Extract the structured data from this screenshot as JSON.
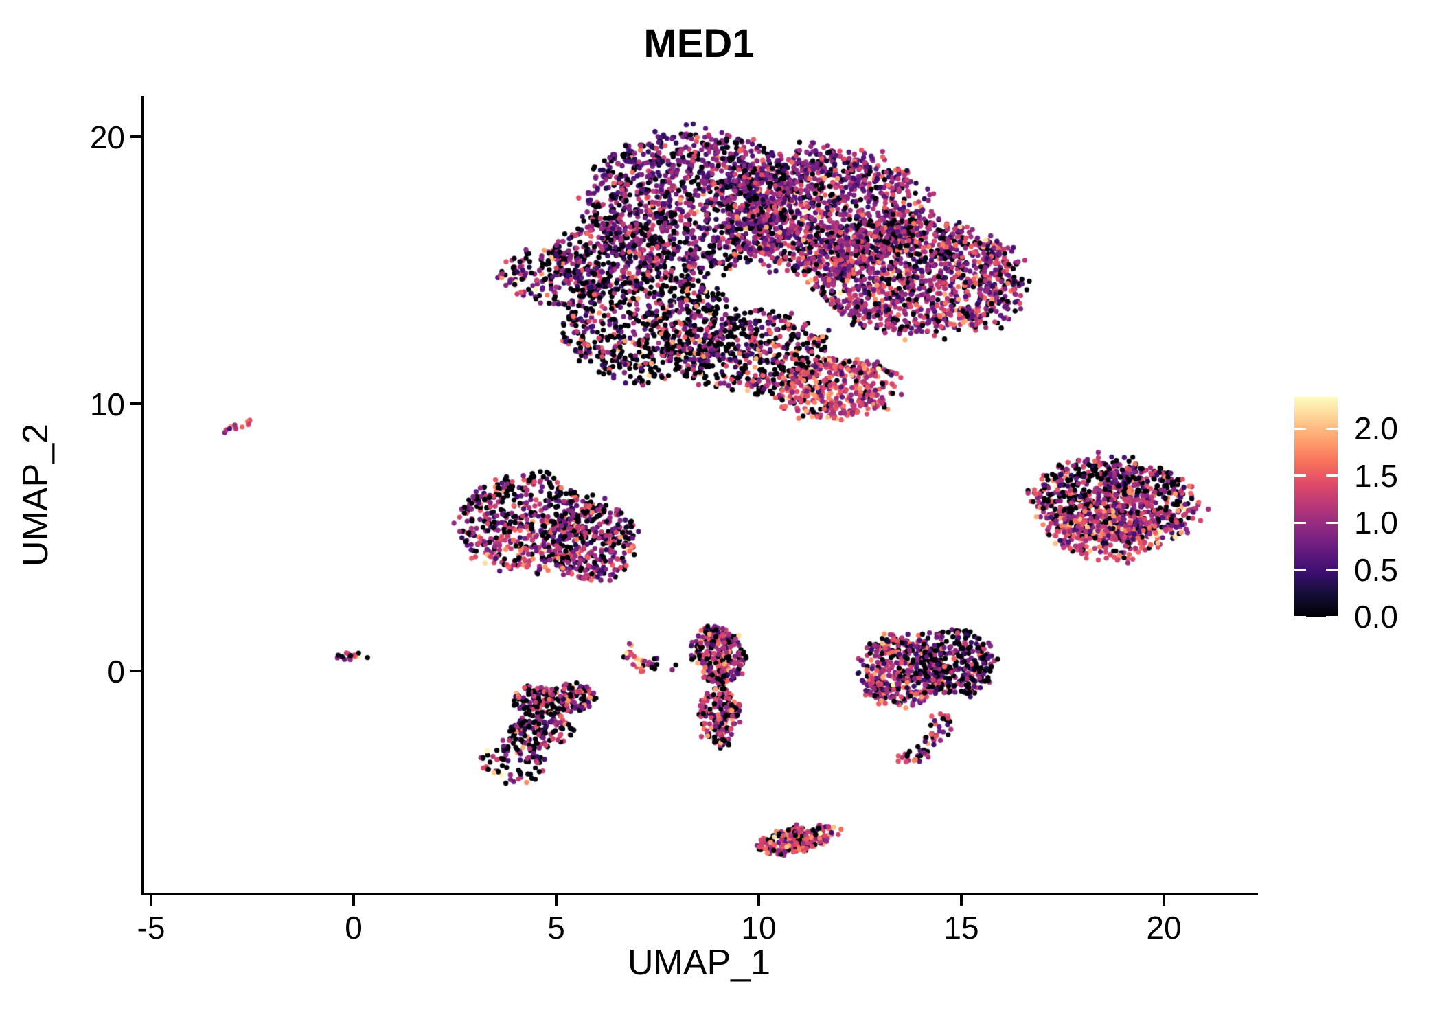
{
  "title": "MED1",
  "axes": {
    "x": {
      "label": "UMAP_1",
      "tick_labels": [
        "-5",
        "0",
        "5",
        "10",
        "15",
        "20"
      ],
      "tick_values": [
        -5,
        0,
        5,
        10,
        15,
        20
      ]
    },
    "y": {
      "label": "UMAP_2",
      "tick_labels": [
        "0",
        "10",
        "20"
      ],
      "tick_values": [
        0,
        10,
        20
      ]
    }
  },
  "colorbar": {
    "tick_labels": [
      "0.0",
      "0.5",
      "1.0",
      "1.5",
      "2.0"
    ],
    "tick_values": [
      0.0,
      0.5,
      1.0,
      1.5,
      2.0
    ],
    "domain": [
      0,
      2.34
    ],
    "colormap_name": "magma",
    "stops": [
      [
        0.0,
        "#000004"
      ],
      [
        0.1,
        "#140e36"
      ],
      [
        0.2,
        "#3b0f70"
      ],
      [
        0.3,
        "#641a80"
      ],
      [
        0.4,
        "#8c2981"
      ],
      [
        0.5,
        "#b73779"
      ],
      [
        0.6,
        "#de4968"
      ],
      [
        0.7,
        "#f7705c"
      ],
      [
        0.8,
        "#fe9f6d"
      ],
      [
        0.9,
        "#fecf92"
      ],
      [
        1.0,
        "#fcfdbf"
      ]
    ]
  },
  "chart_data": {
    "type": "scatter",
    "title": "MED1",
    "xlabel": "UMAP_1",
    "ylabel": "UMAP_2",
    "xlim": [
      -5.2,
      22.3
    ],
    "ylim": [
      -8.4,
      21.5
    ],
    "grid": false,
    "legend_position": "right-colorbar",
    "color_variable": "MED1 expression",
    "color_domain": [
      0,
      2.34
    ],
    "approx_total_points": 9700,
    "point_radius_px": 3.7,
    "seed": 7,
    "clusters": [
      {
        "name": "main-upper-blob",
        "extent_x": [
          3.8,
          16.6
        ],
        "extent_y": [
          8.8,
          20.2
        ],
        "zero_fraction": 0.25,
        "mean_nonzero": 0.95,
        "shapes": [
          {
            "cx": 8.3,
            "cy": 17.5,
            "rx": 2.6,
            "ry": 2.7,
            "rot": 0,
            "n": 1250,
            "p0": [
              0.18,
              0.28
            ],
            "mu": [
              0.85,
              0.85
            ],
            "sd": 0.4
          },
          {
            "cx": 11.6,
            "cy": 17.2,
            "rx": 2.5,
            "ry": 2.4,
            "rot": 0,
            "n": 1250,
            "p0": [
              0.15,
              0.2
            ],
            "mu": [
              0.9,
              0.95
            ],
            "sd": 0.42
          },
          {
            "cx": 13.9,
            "cy": 14.8,
            "rx": 2.7,
            "ry": 2.2,
            "rot": -15,
            "n": 1300,
            "p0": [
              0.2,
              0.18
            ],
            "mu": [
              1.0,
              1.05
            ],
            "sd": 0.42
          },
          {
            "cx": 7.3,
            "cy": 12.9,
            "rx": 2.1,
            "ry": 2.1,
            "rot": 0,
            "n": 700,
            "p0": [
              0.42,
              0.5
            ],
            "mu": [
              0.95,
              1.0
            ],
            "sd": 0.5
          },
          {
            "cx": 9.9,
            "cy": 11.9,
            "rx": 1.9,
            "ry": 1.5,
            "rot": 0,
            "n": 430,
            "p0": [
              0.4,
              0.45
            ],
            "mu": [
              0.9,
              1.0
            ],
            "sd": 0.5
          },
          {
            "cx": 11.9,
            "cy": 10.6,
            "rx": 1.55,
            "ry": 1.15,
            "rot": 10,
            "n": 420,
            "p0": [
              0.15,
              0.12
            ],
            "mu": [
              1.3,
              1.35
            ],
            "sd": 0.35
          },
          {
            "cx": 4.9,
            "cy": 14.7,
            "rx": 1.3,
            "ry": 1.0,
            "rot": -20,
            "n": 200,
            "p0": [
              0.4,
              0.45
            ],
            "mu": [
              1.0,
              1.0
            ],
            "sd": 0.5
          },
          {
            "cx": 6.3,
            "cy": 15.6,
            "rx": 1.4,
            "ry": 1.3,
            "rot": 0,
            "n": 280,
            "p0": [
              0.3,
              0.38
            ],
            "mu": [
              0.9,
              0.9
            ],
            "sd": 0.45
          }
        ]
      },
      {
        "name": "tiny-streak-upper-left",
        "extent_x": [
          -3.2,
          -2.5
        ],
        "extent_y": [
          8.8,
          9.5
        ],
        "zero_fraction": 0.08,
        "mean_nonzero": 1.55,
        "shapes": [
          {
            "cx": -2.85,
            "cy": 9.15,
            "rx": 0.42,
            "ry": 0.13,
            "rot": 35,
            "n": 11,
            "p0": [
              0.08,
              0.08
            ],
            "mu": [
              1.55,
              1.55
            ],
            "sd": 0.38
          }
        ]
      },
      {
        "name": "mid-left-blob",
        "extent_x": [
          2.6,
          7.0
        ],
        "extent_y": [
          3.3,
          7.4
        ],
        "zero_fraction": 0.3,
        "mean_nonzero": 1.1,
        "shapes": [
          {
            "cx": 4.3,
            "cy": 5.55,
            "rx": 1.7,
            "ry": 1.8,
            "rot": 0,
            "n": 530,
            "p0": [
              0.5,
              0.12
            ],
            "mu": [
              0.85,
              1.25
            ],
            "sd": 0.42
          },
          {
            "cx": 5.85,
            "cy": 4.85,
            "rx": 1.15,
            "ry": 1.5,
            "rot": 0,
            "n": 330,
            "p0": [
              0.42,
              0.18
            ],
            "mu": [
              0.9,
              1.15
            ],
            "sd": 0.42
          }
        ]
      },
      {
        "name": "tiny-streak-origin",
        "extent_x": [
          -0.4,
          0.55
        ],
        "extent_y": [
          0.3,
          0.75
        ],
        "zero_fraction": 0.3,
        "mean_nonzero": 1.1,
        "shapes": [
          {
            "cx": 0.05,
            "cy": 0.5,
            "rx": 0.5,
            "ry": 0.17,
            "rot": -14,
            "n": 16,
            "p0": [
              0.3,
              0.3
            ],
            "mu": [
              1.1,
              1.1
            ],
            "sd": 0.55
          }
        ]
      },
      {
        "name": "right-blob",
        "extent_x": [
          16.9,
          20.8
        ],
        "extent_y": [
          4.0,
          8.5
        ],
        "zero_fraction": 0.3,
        "mean_nonzero": 1.1,
        "shapes": [
          {
            "cx": 18.8,
            "cy": 6.35,
            "rx": 2.05,
            "ry": 1.55,
            "rot": -14,
            "n": 860,
            "p0": [
              0.45,
              0.15
            ],
            "mu": [
              0.9,
              1.2
            ],
            "sd": 0.45
          },
          {
            "cx": 18.5,
            "cy": 5.1,
            "rx": 1.5,
            "ry": 0.95,
            "rot": -10,
            "n": 230,
            "p0": [
              0.15,
              0.12
            ],
            "mu": [
              1.2,
              1.25
            ],
            "sd": 0.42
          }
        ]
      },
      {
        "name": "tiny-arc",
        "extent_x": [
          6.6,
          8.0
        ],
        "extent_y": [
          -0.2,
          1.2
        ],
        "zero_fraction": 0.28,
        "mean_nonzero": 1.25,
        "shapes": [
          {
            "cx": 7.0,
            "cy": 0.5,
            "rx": 0.3,
            "ry": 0.6,
            "rot": 25,
            "n": 26,
            "p0": [
              0.2,
              0.2
            ],
            "mu": [
              1.35,
              1.35
            ],
            "sd": 0.45
          },
          {
            "cx": 7.6,
            "cy": 0.25,
            "rx": 0.4,
            "ry": 0.3,
            "rot": 0,
            "n": 9,
            "p0": [
              0.55,
              0.55
            ],
            "mu": [
              0.9,
              0.9
            ],
            "sd": 0.4
          }
        ]
      },
      {
        "name": "vertical-column",
        "extent_x": [
          8.3,
          9.7
        ],
        "extent_y": [
          -2.9,
          1.7
        ],
        "zero_fraction": 0.3,
        "mean_nonzero": 1.1,
        "shapes": [
          {
            "cx": 9.0,
            "cy": 0.55,
            "rx": 0.62,
            "ry": 1.1,
            "rot": 5,
            "n": 270,
            "p0": [
              0.3,
              0.28
            ],
            "mu": [
              1.1,
              1.15
            ],
            "sd": 0.45
          },
          {
            "cx": 9.05,
            "cy": -1.75,
            "rx": 0.5,
            "ry": 1.2,
            "rot": 0,
            "n": 175,
            "p0": [
              0.3,
              0.3
            ],
            "mu": [
              1.1,
              1.1
            ],
            "sd": 0.45
          }
        ]
      },
      {
        "name": "lower-left-s-blob",
        "extent_x": [
          3.2,
          6.0
        ],
        "extent_y": [
          -4.3,
          -0.4
        ],
        "zero_fraction": 0.48,
        "mean_nonzero": 1.0,
        "shapes": [
          {
            "cx": 4.95,
            "cy": -1.05,
            "rx": 1.05,
            "ry": 0.6,
            "rot": 5,
            "n": 200,
            "p0": [
              0.42,
              0.42
            ],
            "mu": [
              1.05,
              1.05
            ],
            "sd": 0.5
          },
          {
            "cx": 4.6,
            "cy": -2.2,
            "rx": 0.8,
            "ry": 0.7,
            "rot": 0,
            "n": 120,
            "p0": [
              0.55,
              0.5
            ],
            "mu": [
              0.95,
              0.95
            ],
            "sd": 0.5
          },
          {
            "cx": 3.95,
            "cy": -3.4,
            "rx": 0.8,
            "ry": 0.85,
            "rot": 0,
            "n": 85,
            "p0": [
              0.5,
              0.5
            ],
            "mu": [
              1.0,
              1.0
            ],
            "sd": 0.5
          }
        ]
      },
      {
        "name": "right-center-blob",
        "extent_x": [
          12.6,
          15.8
        ],
        "extent_y": [
          -1.6,
          1.7
        ],
        "zero_fraction": 0.3,
        "mean_nonzero": 1.0,
        "shapes": [
          {
            "cx": 13.5,
            "cy": 0.0,
            "rx": 1.05,
            "ry": 1.35,
            "rot": 0,
            "n": 390,
            "p0": [
              0.2,
              0.18
            ],
            "mu": [
              1.1,
              1.15
            ],
            "sd": 0.45
          },
          {
            "cx": 14.8,
            "cy": 0.3,
            "rx": 1.0,
            "ry": 1.3,
            "rot": 0,
            "n": 310,
            "p0": [
              0.45,
              0.4
            ],
            "mu": [
              0.85,
              0.9
            ],
            "sd": 0.45
          }
        ]
      },
      {
        "name": "comma-tail",
        "extent_x": [
          13.3,
          14.9
        ],
        "extent_y": [
          -3.5,
          -1.6
        ],
        "zero_fraction": 0.3,
        "mean_nonzero": 1.15,
        "shapes": [
          {
            "cx": 14.55,
            "cy": -2.0,
            "rx": 0.28,
            "ry": 0.4,
            "rot": 15,
            "n": 18,
            "p0": [
              0.3,
              0.3
            ],
            "mu": [
              1.15,
              1.15
            ],
            "sd": 0.45
          },
          {
            "cx": 14.25,
            "cy": -2.65,
            "rx": 0.25,
            "ry": 0.32,
            "rot": 30,
            "n": 14,
            "p0": [
              0.28,
              0.28
            ],
            "mu": [
              1.2,
              1.2
            ],
            "sd": 0.45
          },
          {
            "cx": 13.8,
            "cy": -3.1,
            "rx": 0.5,
            "ry": 0.3,
            "rot": 15,
            "n": 24,
            "p0": [
              0.3,
              0.3
            ],
            "mu": [
              1.15,
              1.15
            ],
            "sd": 0.45
          }
        ]
      },
      {
        "name": "bottom-diagonal-blob",
        "extent_x": [
          10.0,
          11.9
        ],
        "extent_y": [
          -7.1,
          -5.4
        ],
        "zero_fraction": 0.23,
        "mean_nonzero": 1.3,
        "shapes": [
          {
            "cx": 10.95,
            "cy": -6.3,
            "rx": 1.05,
            "ry": 0.45,
            "rot": 22,
            "n": 215,
            "p0": [
              0.22,
              0.25
            ],
            "mu": [
              1.3,
              1.3
            ],
            "sd": 0.38
          }
        ]
      }
    ]
  }
}
